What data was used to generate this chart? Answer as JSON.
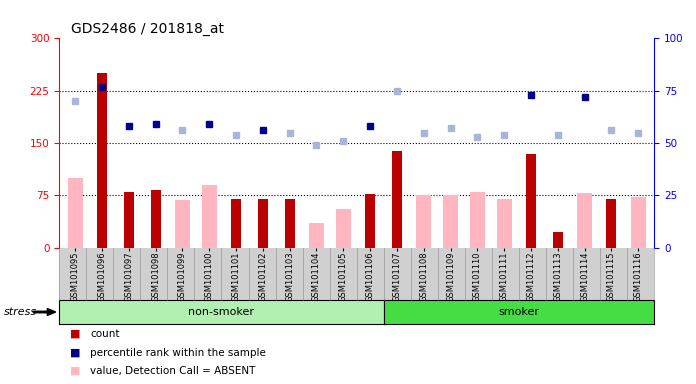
{
  "title": "GDS2486 / 201818_at",
  "samples": [
    "GSM101095",
    "GSM101096",
    "GSM101097",
    "GSM101098",
    "GSM101099",
    "GSM101100",
    "GSM101101",
    "GSM101102",
    "GSM101103",
    "GSM101104",
    "GSM101105",
    "GSM101106",
    "GSM101107",
    "GSM101108",
    "GSM101109",
    "GSM101110",
    "GSM101111",
    "GSM101112",
    "GSM101113",
    "GSM101114",
    "GSM101115",
    "GSM101116"
  ],
  "red_bars": [
    0,
    250,
    80,
    82,
    0,
    0,
    70,
    70,
    70,
    0,
    0,
    77,
    138,
    0,
    0,
    0,
    0,
    135,
    22,
    0,
    70,
    0
  ],
  "pink_bars": [
    100,
    0,
    0,
    0,
    68,
    90,
    0,
    0,
    0,
    35,
    55,
    0,
    0,
    75,
    75,
    80,
    70,
    0,
    0,
    78,
    0,
    73
  ],
  "blue_squares": [
    0,
    77,
    58,
    59,
    0,
    59,
    0,
    56,
    0,
    0,
    0,
    58,
    0,
    0,
    0,
    0,
    0,
    73,
    0,
    72,
    0,
    0
  ],
  "lightblue_squares": [
    70,
    0,
    0,
    0,
    56,
    0,
    54,
    0,
    55,
    49,
    51,
    0,
    75,
    55,
    57,
    53,
    54,
    0,
    54,
    0,
    56,
    55
  ],
  "ylim_left": [
    0,
    300
  ],
  "ylim_right": [
    0,
    100
  ],
  "yticks_left": [
    0,
    75,
    150,
    225,
    300
  ],
  "yticks_right": [
    0,
    25,
    50,
    75,
    100
  ],
  "ns_color": "#b2f0b2",
  "sm_color": "#44dd44",
  "red_color": "#bb0000",
  "pink_color": "#ffb6c1",
  "blue_color": "#00008b",
  "lightblue_color": "#aab4d8",
  "ns_count": 12,
  "sm_count": 10
}
